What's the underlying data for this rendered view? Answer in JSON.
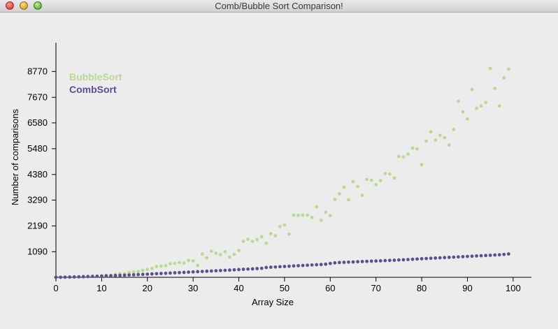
{
  "window": {
    "title": "Comb/Bubble Sort Comparison!"
  },
  "colors": {
    "bubble": "#b9d994",
    "comb": "#5b4f8f",
    "axis": "#000000"
  },
  "chart_data": {
    "type": "scatter",
    "title": "",
    "xlabel": "Array Size",
    "ylabel": "Number of comparisons",
    "xlim": [
      0,
      104
    ],
    "ylim": [
      0,
      10000
    ],
    "x_ticks": [
      0,
      10,
      20,
      30,
      40,
      50,
      60,
      70,
      80,
      90,
      100
    ],
    "y_ticks": [
      1090,
      2190,
      3290,
      4380,
      5480,
      6580,
      7670,
      8770
    ],
    "legend_position": "top-left",
    "series": [
      {
        "name": "BubbleSort",
        "color": "#b9d994",
        "x": [
          0,
          1,
          2,
          3,
          4,
          5,
          6,
          7,
          8,
          9,
          10,
          11,
          12,
          13,
          14,
          15,
          16,
          17,
          18,
          19,
          20,
          21,
          22,
          23,
          24,
          25,
          26,
          27,
          28,
          29,
          30,
          31,
          32,
          33,
          34,
          35,
          36,
          37,
          38,
          39,
          40,
          41,
          42,
          43,
          44,
          45,
          46,
          47,
          48,
          49,
          50,
          51,
          52,
          53,
          54,
          55,
          56,
          57,
          58,
          59,
          60,
          61,
          62,
          63,
          64,
          65,
          66,
          67,
          68,
          69,
          70,
          71,
          72,
          73,
          74,
          75,
          76,
          77,
          78,
          79,
          80,
          81,
          82,
          83,
          84,
          85,
          86,
          87,
          88,
          89,
          90,
          91,
          92,
          93,
          94,
          95,
          96,
          97,
          98,
          99
        ],
        "values": [
          0,
          0,
          0,
          3,
          6,
          10,
          15,
          21,
          40,
          50,
          60,
          90,
          90,
          120,
          150,
          150,
          200,
          230,
          250,
          300,
          330,
          380,
          460,
          470,
          500,
          580,
          590,
          630,
          610,
          720,
          700,
          500,
          1000,
          830,
          1110,
          1030,
          970,
          1090,
          860,
          980,
          1140,
          1530,
          1620,
          1530,
          1610,
          1730,
          1450,
          1860,
          1770,
          2160,
          2230,
          1840,
          2650,
          2640,
          2650,
          2650,
          2550,
          3000,
          2430,
          2770,
          2630,
          3320,
          3560,
          3840,
          3300,
          4080,
          3870,
          3490,
          4170,
          4140,
          3950,
          4120,
          4420,
          4400,
          4230,
          5150,
          5130,
          5250,
          5500,
          5470,
          4800,
          5800,
          6200,
          5850,
          6050,
          5950,
          5640,
          6300,
          7500,
          7050,
          6750,
          8000,
          7200,
          7300,
          7450,
          8900,
          8050,
          7300,
          8500,
          8870
        ]
      },
      {
        "name": "CombSort",
        "color": "#5b4f8f",
        "x": [
          0,
          1,
          2,
          3,
          4,
          5,
          6,
          7,
          8,
          9,
          10,
          11,
          12,
          13,
          14,
          15,
          16,
          17,
          18,
          19,
          20,
          21,
          22,
          23,
          24,
          25,
          26,
          27,
          28,
          29,
          30,
          31,
          32,
          33,
          34,
          35,
          36,
          37,
          38,
          39,
          40,
          41,
          42,
          43,
          44,
          45,
          46,
          47,
          48,
          49,
          50,
          51,
          52,
          53,
          54,
          55,
          56,
          57,
          58,
          59,
          60,
          61,
          62,
          63,
          64,
          65,
          66,
          67,
          68,
          69,
          70,
          71,
          72,
          73,
          74,
          75,
          76,
          77,
          78,
          79,
          80,
          81,
          82,
          83,
          84,
          85,
          86,
          87,
          88,
          89,
          90,
          91,
          92,
          93,
          94,
          95,
          96,
          97,
          98,
          99
        ],
        "values": [
          0,
          3,
          8,
          12,
          16,
          22,
          28,
          34,
          40,
          46,
          55,
          62,
          68,
          76,
          84,
          92,
          100,
          108,
          118,
          125,
          135,
          145,
          153,
          162,
          172,
          182,
          192,
          200,
          210,
          220,
          230,
          240,
          250,
          258,
          268,
          278,
          288,
          298,
          308,
          318,
          330,
          340,
          350,
          360,
          372,
          384,
          420,
          430,
          440,
          452,
          462,
          472,
          485,
          495,
          505,
          515,
          525,
          535,
          545,
          560,
          590,
          615,
          630,
          640,
          648,
          655,
          665,
          672,
          680,
          688,
          695,
          702,
          712,
          720,
          728,
          738,
          748,
          758,
          768,
          778,
          790,
          800,
          810,
          820,
          830,
          840,
          850,
          860,
          870,
          880,
          890,
          900,
          910,
          920,
          930,
          940,
          950,
          960,
          975,
          995
        ]
      }
    ]
  }
}
